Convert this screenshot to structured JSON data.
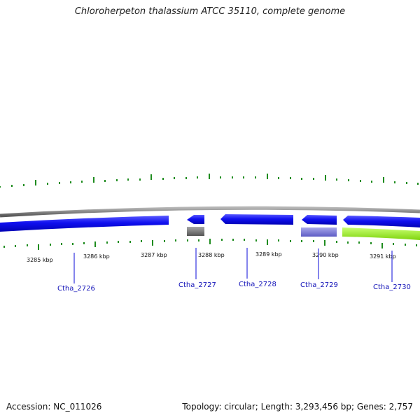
{
  "title": "Chloroherpeton thalassium ATCC 35110, complete genome",
  "accession_line": "Accession: NC_011026",
  "summary_line": "Topology: circular; Length: 3,293,456 bp; Genes: 2,757",
  "scale_labels": [
    "3285 kbp",
    "3286 kbp",
    "3287 kbp",
    "3288 kbp",
    "3289 kbp",
    "3290 kbp",
    "3291 kbp"
  ],
  "gene_labels": [
    "Ctha_2726",
    "Ctha_2727",
    "Ctha_2728",
    "Ctha_2729",
    "Ctha_2730"
  ],
  "colors": {
    "backbone": "#7d7d7d",
    "cds_forward": "#0a0ae6",
    "gene_gray": "#6e6e6e",
    "gene_purple": "#7b79d6",
    "gene_green": "#9cf02a",
    "tick": "#1f8c1f",
    "label_line": "#0a0ad8"
  }
}
